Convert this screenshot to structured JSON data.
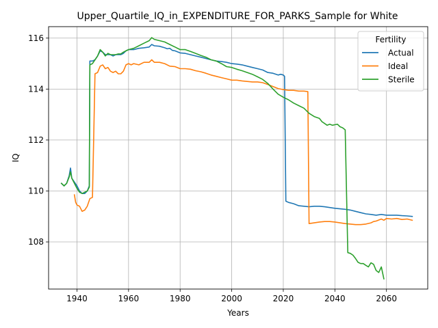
{
  "chart_data": {
    "type": "line",
    "title": "Upper_Quartile_IQ_in_EXPENDITURE_FOR_PARKS_Sample for White",
    "xlabel": "Years",
    "ylabel": "IQ",
    "xlim": [
      1929,
      2076
    ],
    "ylim": [
      106.15,
      116.45
    ],
    "xticks": [
      1940,
      1960,
      1980,
      2000,
      2020,
      2040,
      2060
    ],
    "yticks": [
      108,
      110,
      112,
      114,
      116
    ],
    "grid": true,
    "legend": {
      "title": "Fertility",
      "placement": "top-right"
    },
    "series": [
      {
        "name": "Actual",
        "color": "#1f77b4",
        "points": [
          [
            1934,
            110.3
          ],
          [
            1935,
            110.2
          ],
          [
            1936,
            110.3
          ],
          [
            1937,
            110.6
          ],
          [
            1937.5,
            110.9
          ],
          [
            1938,
            110.5
          ],
          [
            1939,
            110.35
          ],
          [
            1940,
            110.2
          ],
          [
            1941,
            110.0
          ],
          [
            1942,
            109.9
          ],
          [
            1943,
            109.9
          ],
          [
            1944,
            110.0
          ],
          [
            1944.8,
            110.2
          ],
          [
            1945,
            115.1
          ],
          [
            1946,
            115.1
          ],
          [
            1947,
            115.15
          ],
          [
            1948,
            115.3
          ],
          [
            1949,
            115.5
          ],
          [
            1950,
            115.45
          ],
          [
            1951,
            115.35
          ],
          [
            1952,
            115.35
          ],
          [
            1953,
            115.35
          ],
          [
            1954,
            115.3
          ],
          [
            1955,
            115.35
          ],
          [
            1956,
            115.35
          ],
          [
            1957,
            115.35
          ],
          [
            1958,
            115.4
          ],
          [
            1959,
            115.5
          ],
          [
            1960,
            115.55
          ],
          [
            1962,
            115.55
          ],
          [
            1964,
            115.6
          ],
          [
            1966,
            115.62
          ],
          [
            1968,
            115.65
          ],
          [
            1969,
            115.75
          ],
          [
            1970,
            115.7
          ],
          [
            1972,
            115.68
          ],
          [
            1974,
            115.62
          ],
          [
            1975,
            115.58
          ],
          [
            1976,
            115.6
          ],
          [
            1977,
            115.52
          ],
          [
            1978,
            115.5
          ],
          [
            1980,
            115.42
          ],
          [
            1982,
            115.4
          ],
          [
            1984,
            115.35
          ],
          [
            1986,
            115.3
          ],
          [
            1988,
            115.25
          ],
          [
            1990,
            115.2
          ],
          [
            1992,
            115.15
          ],
          [
            1994,
            115.1
          ],
          [
            1996,
            115.08
          ],
          [
            1998,
            115.05
          ],
          [
            2000,
            115.0
          ],
          [
            2002,
            114.98
          ],
          [
            2004,
            114.95
          ],
          [
            2006,
            114.9
          ],
          [
            2008,
            114.85
          ],
          [
            2010,
            114.8
          ],
          [
            2012,
            114.75
          ],
          [
            2014,
            114.65
          ],
          [
            2016,
            114.62
          ],
          [
            2018,
            114.55
          ],
          [
            2019,
            114.58
          ],
          [
            2020,
            114.55
          ],
          [
            2020.5,
            114.5
          ],
          [
            2021,
            109.6
          ],
          [
            2022,
            109.55
          ],
          [
            2024,
            109.5
          ],
          [
            2026,
            109.42
          ],
          [
            2028,
            109.4
          ],
          [
            2030,
            109.38
          ],
          [
            2032,
            109.4
          ],
          [
            2034,
            109.4
          ],
          [
            2036,
            109.38
          ],
          [
            2038,
            109.35
          ],
          [
            2040,
            109.32
          ],
          [
            2042,
            109.3
          ],
          [
            2044,
            109.28
          ],
          [
            2046,
            109.25
          ],
          [
            2048,
            109.2
          ],
          [
            2050,
            109.15
          ],
          [
            2052,
            109.1
          ],
          [
            2054,
            109.08
          ],
          [
            2056,
            109.05
          ],
          [
            2058,
            109.08
          ],
          [
            2060,
            109.05
          ],
          [
            2062,
            109.05
          ],
          [
            2064,
            109.05
          ],
          [
            2066,
            109.03
          ],
          [
            2068,
            109.02
          ],
          [
            2070,
            109.0
          ]
        ]
      },
      {
        "name": "Ideal",
        "color": "#ff7f0e",
        "points": [
          [
            1939,
            109.85
          ],
          [
            1939.5,
            109.55
          ],
          [
            1940,
            109.45
          ],
          [
            1941,
            109.4
          ],
          [
            1942,
            109.2
          ],
          [
            1943,
            109.25
          ],
          [
            1944,
            109.4
          ],
          [
            1945,
            109.7
          ],
          [
            1946,
            109.75
          ],
          [
            1946.5,
            112.2
          ],
          [
            1947,
            114.6
          ],
          [
            1948,
            114.65
          ],
          [
            1949,
            114.9
          ],
          [
            1950,
            114.95
          ],
          [
            1951,
            114.8
          ],
          [
            1952,
            114.85
          ],
          [
            1953,
            114.7
          ],
          [
            1954,
            114.65
          ],
          [
            1955,
            114.7
          ],
          [
            1956,
            114.6
          ],
          [
            1957,
            114.6
          ],
          [
            1958,
            114.7
          ],
          [
            1959,
            114.95
          ],
          [
            1960,
            115.0
          ],
          [
            1961,
            114.95
          ],
          [
            1962,
            115.0
          ],
          [
            1964,
            114.95
          ],
          [
            1966,
            115.05
          ],
          [
            1968,
            115.05
          ],
          [
            1969,
            115.15
          ],
          [
            1970,
            115.05
          ],
          [
            1972,
            115.05
          ],
          [
            1974,
            115.0
          ],
          [
            1976,
            114.9
          ],
          [
            1978,
            114.88
          ],
          [
            1980,
            114.8
          ],
          [
            1982,
            114.8
          ],
          [
            1984,
            114.78
          ],
          [
            1986,
            114.72
          ],
          [
            1988,
            114.68
          ],
          [
            1990,
            114.62
          ],
          [
            1992,
            114.55
          ],
          [
            1994,
            114.5
          ],
          [
            1996,
            114.45
          ],
          [
            1998,
            114.4
          ],
          [
            2000,
            114.35
          ],
          [
            2002,
            114.35
          ],
          [
            2004,
            114.32
          ],
          [
            2006,
            114.3
          ],
          [
            2008,
            114.28
          ],
          [
            2010,
            114.28
          ],
          [
            2012,
            114.25
          ],
          [
            2014,
            114.18
          ],
          [
            2016,
            114.1
          ],
          [
            2018,
            114.02
          ],
          [
            2020,
            113.98
          ],
          [
            2022,
            113.95
          ],
          [
            2024,
            113.95
          ],
          [
            2026,
            113.92
          ],
          [
            2028,
            113.92
          ],
          [
            2029.5,
            113.9
          ],
          [
            2030,
            108.72
          ],
          [
            2032,
            108.75
          ],
          [
            2034,
            108.78
          ],
          [
            2036,
            108.8
          ],
          [
            2038,
            108.8
          ],
          [
            2040,
            108.78
          ],
          [
            2042,
            108.75
          ],
          [
            2044,
            108.72
          ],
          [
            2046,
            108.7
          ],
          [
            2048,
            108.68
          ],
          [
            2050,
            108.68
          ],
          [
            2052,
            108.7
          ],
          [
            2054,
            108.75
          ],
          [
            2055,
            108.8
          ],
          [
            2056,
            108.82
          ],
          [
            2058,
            108.9
          ],
          [
            2059,
            108.85
          ],
          [
            2060,
            108.92
          ],
          [
            2062,
            108.9
          ],
          [
            2064,
            108.92
          ],
          [
            2066,
            108.88
          ],
          [
            2068,
            108.9
          ],
          [
            2070,
            108.85
          ]
        ]
      },
      {
        "name": "Sterile",
        "color": "#2ca02c",
        "points": [
          [
            1934,
            110.3
          ],
          [
            1935,
            110.2
          ],
          [
            1936,
            110.3
          ],
          [
            1937,
            110.55
          ],
          [
            1937.5,
            110.75
          ],
          [
            1938,
            110.5
          ],
          [
            1939,
            110.3
          ],
          [
            1940,
            110.1
          ],
          [
            1941,
            109.95
          ],
          [
            1942,
            109.9
          ],
          [
            1943,
            109.95
          ],
          [
            1944,
            110.0
          ],
          [
            1944.8,
            110.15
          ],
          [
            1945,
            114.95
          ],
          [
            1946,
            115.0
          ],
          [
            1947,
            115.15
          ],
          [
            1948,
            115.3
          ],
          [
            1949,
            115.55
          ],
          [
            1950,
            115.45
          ],
          [
            1951,
            115.3
          ],
          [
            1952,
            115.4
          ],
          [
            1953,
            115.35
          ],
          [
            1954,
            115.35
          ],
          [
            1955,
            115.35
          ],
          [
            1956,
            115.38
          ],
          [
            1957,
            115.38
          ],
          [
            1958,
            115.45
          ],
          [
            1959,
            115.5
          ],
          [
            1960,
            115.55
          ],
          [
            1962,
            115.6
          ],
          [
            1964,
            115.7
          ],
          [
            1966,
            115.8
          ],
          [
            1968,
            115.9
          ],
          [
            1969,
            116.02
          ],
          [
            1970,
            115.95
          ],
          [
            1972,
            115.9
          ],
          [
            1974,
            115.85
          ],
          [
            1976,
            115.75
          ],
          [
            1978,
            115.65
          ],
          [
            1980,
            115.55
          ],
          [
            1982,
            115.55
          ],
          [
            1984,
            115.48
          ],
          [
            1986,
            115.4
          ],
          [
            1988,
            115.32
          ],
          [
            1990,
            115.25
          ],
          [
            1992,
            115.15
          ],
          [
            1994,
            115.1
          ],
          [
            1996,
            115.0
          ],
          [
            1998,
            114.88
          ],
          [
            2000,
            114.85
          ],
          [
            2002,
            114.78
          ],
          [
            2004,
            114.72
          ],
          [
            2006,
            114.65
          ],
          [
            2008,
            114.58
          ],
          [
            2010,
            114.48
          ],
          [
            2012,
            114.38
          ],
          [
            2014,
            114.22
          ],
          [
            2016,
            114.0
          ],
          [
            2018,
            113.8
          ],
          [
            2020,
            113.68
          ],
          [
            2022,
            113.58
          ],
          [
            2024,
            113.45
          ],
          [
            2026,
            113.35
          ],
          [
            2028,
            113.25
          ],
          [
            2030,
            113.05
          ],
          [
            2032,
            112.92
          ],
          [
            2034,
            112.85
          ],
          [
            2035,
            112.72
          ],
          [
            2036,
            112.65
          ],
          [
            2037,
            112.58
          ],
          [
            2038,
            112.62
          ],
          [
            2039,
            112.58
          ],
          [
            2040,
            112.6
          ],
          [
            2041,
            112.62
          ],
          [
            2042,
            112.52
          ],
          [
            2043,
            112.48
          ],
          [
            2044,
            112.4
          ],
          [
            2045,
            107.58
          ],
          [
            2046,
            107.55
          ],
          [
            2047,
            107.48
          ],
          [
            2048,
            107.35
          ],
          [
            2049,
            107.2
          ],
          [
            2050,
            107.15
          ],
          [
            2051,
            107.15
          ],
          [
            2052,
            107.08
          ],
          [
            2053,
            107.02
          ],
          [
            2054,
            107.18
          ],
          [
            2055,
            107.12
          ],
          [
            2056,
            106.88
          ],
          [
            2057,
            106.8
          ],
          [
            2058,
            107.02
          ],
          [
            2059,
            106.55
          ]
        ]
      }
    ]
  }
}
